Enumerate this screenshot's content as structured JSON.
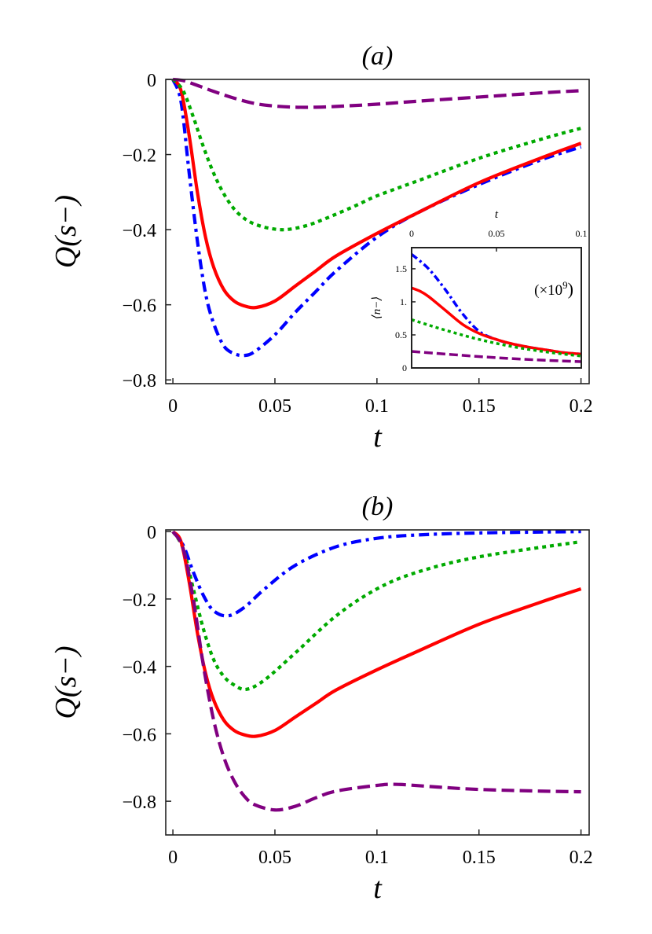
{
  "chart_data": [
    {
      "type": "line",
      "title": "(a)",
      "xlabel": "t",
      "ylabel": "Q(s−)",
      "xlim": [
        -0.0035,
        0.204
      ],
      "ylim": [
        -0.81,
        0
      ],
      "xticks": [
        0,
        0.05,
        0.1,
        0.15,
        0.2
      ],
      "xtick_labels": [
        "0",
        "0.05",
        "0.1",
        "0.15",
        "0.2"
      ],
      "yticks": [
        0,
        -0.2,
        -0.4,
        -0.6,
        -0.8
      ],
      "ytick_labels": [
        "0",
        "−0.2",
        "−0.4",
        "−0.6",
        "−0.8"
      ],
      "grid": false,
      "series": [
        {
          "color": "#0000ff",
          "style": "dashdot",
          "x": [
            0,
            0.004,
            0.008,
            0.012,
            0.016,
            0.02,
            0.025,
            0.03,
            0.035,
            0.04,
            0.05,
            0.06,
            0.07,
            0.08,
            0.1,
            0.12,
            0.15,
            0.18,
            0.2
          ],
          "y": [
            0,
            -0.06,
            -0.25,
            -0.43,
            -0.57,
            -0.65,
            -0.71,
            -0.73,
            -0.735,
            -0.725,
            -0.68,
            -0.62,
            -0.565,
            -0.51,
            -0.42,
            -0.355,
            -0.28,
            -0.215,
            -0.18
          ]
        },
        {
          "color": "#ff0000",
          "style": "solid",
          "x": [
            0,
            0.004,
            0.008,
            0.012,
            0.016,
            0.02,
            0.025,
            0.03,
            0.035,
            0.041,
            0.05,
            0.06,
            0.07,
            0.08,
            0.1,
            0.12,
            0.15,
            0.18,
            0.2
          ],
          "y": [
            0,
            -0.03,
            -0.15,
            -0.3,
            -0.42,
            -0.5,
            -0.56,
            -0.59,
            -0.603,
            -0.607,
            -0.59,
            -0.55,
            -0.51,
            -0.47,
            -0.41,
            -0.355,
            -0.275,
            -0.21,
            -0.17
          ]
        },
        {
          "color": "#00aa00",
          "style": "dotted",
          "x": [
            0,
            0.005,
            0.01,
            0.015,
            0.02,
            0.025,
            0.03,
            0.035,
            0.04,
            0.047,
            0.055,
            0.065,
            0.075,
            0.09,
            0.1,
            0.12,
            0.15,
            0.18,
            0.2
          ],
          "y": [
            0,
            -0.03,
            -0.1,
            -0.18,
            -0.25,
            -0.305,
            -0.345,
            -0.37,
            -0.385,
            -0.396,
            -0.4,
            -0.39,
            -0.37,
            -0.335,
            -0.31,
            -0.27,
            -0.21,
            -0.16,
            -0.13
          ]
        },
        {
          "color": "#800080",
          "style": "dashed",
          "x": [
            0,
            0.005,
            0.01,
            0.02,
            0.03,
            0.04,
            0.05,
            0.06,
            0.07,
            0.08,
            0.1,
            0.12,
            0.15,
            0.18,
            0.2
          ],
          "y": [
            0,
            -0.003,
            -0.012,
            -0.032,
            -0.05,
            -0.064,
            -0.071,
            -0.074,
            -0.074,
            -0.072,
            -0.066,
            -0.058,
            -0.047,
            -0.036,
            -0.03
          ]
        }
      ]
    },
    {
      "type": "line",
      "title": "",
      "xlabel": "t",
      "ylabel": "⟨n−⟩",
      "annotation": "(×10⁹)",
      "annotation_base": "(×10",
      "annotation_exp": "9",
      "annotation_close": ")",
      "xlim": [
        0,
        0.1
      ],
      "ylim": [
        0,
        1.82
      ],
      "xticks": [
        0,
        0.05,
        0.1
      ],
      "xtick_labels": [
        "0",
        "0.05",
        "0.1"
      ],
      "xaxis_position": "top",
      "yticks": [
        0,
        0.5,
        1,
        1.5
      ],
      "ytick_labels": [
        "0",
        "0.5",
        "1.",
        "1.5"
      ],
      "placement": "inset in (a), bottom-right",
      "series": [
        {
          "color": "#0000ff",
          "style": "dashdot",
          "x": [
            0,
            0.01,
            0.02,
            0.03,
            0.04,
            0.05,
            0.06,
            0.07,
            0.08,
            0.09,
            0.1
          ],
          "y": [
            1.72,
            1.5,
            1.18,
            0.82,
            0.55,
            0.43,
            0.36,
            0.31,
            0.27,
            0.23,
            0.21
          ]
        },
        {
          "color": "#ff0000",
          "style": "solid",
          "x": [
            0,
            0.005,
            0.01,
            0.02,
            0.03,
            0.04,
            0.05,
            0.06,
            0.07,
            0.08,
            0.09,
            0.1
          ],
          "y": [
            1.21,
            1.16,
            1.08,
            0.87,
            0.66,
            0.52,
            0.43,
            0.36,
            0.31,
            0.27,
            0.23,
            0.21
          ]
        },
        {
          "color": "#00aa00",
          "style": "dotted",
          "x": [
            0,
            0.02,
            0.04,
            0.06,
            0.08,
            0.1
          ],
          "y": [
            0.73,
            0.57,
            0.43,
            0.32,
            0.24,
            0.18
          ]
        },
        {
          "color": "#800080",
          "style": "dashed",
          "x": [
            0,
            0.025,
            0.05,
            0.075,
            0.1
          ],
          "y": [
            0.25,
            0.2,
            0.155,
            0.12,
            0.095
          ]
        }
      ]
    },
    {
      "type": "line",
      "title": "(b)",
      "xlabel": "t",
      "ylabel": "Q(s−)",
      "xlim": [
        -0.0035,
        0.204
      ],
      "ylim": [
        -0.9,
        0.005
      ],
      "xticks": [
        0,
        0.05,
        0.1,
        0.15,
        0.2
      ],
      "xtick_labels": [
        "0",
        "0.05",
        "0.1",
        "0.15",
        "0.2"
      ],
      "yticks": [
        0,
        -0.2,
        -0.4,
        -0.6,
        -0.8
      ],
      "ytick_labels": [
        "0",
        "−0.2",
        "−0.4",
        "−0.6",
        "−0.8"
      ],
      "grid": false,
      "series": [
        {
          "color": "#0000ff",
          "style": "dashdot",
          "x": [
            0,
            0.005,
            0.01,
            0.015,
            0.02,
            0.027,
            0.035,
            0.045,
            0.06,
            0.08,
            0.1,
            0.12,
            0.15,
            0.2
          ],
          "y": [
            0,
            -0.04,
            -0.12,
            -0.19,
            -0.235,
            -0.25,
            -0.225,
            -0.17,
            -0.1,
            -0.045,
            -0.02,
            -0.01,
            -0.004,
            0
          ]
        },
        {
          "color": "#00aa00",
          "style": "dotted",
          "x": [
            0,
            0.005,
            0.01,
            0.015,
            0.02,
            0.025,
            0.03,
            0.036,
            0.045,
            0.06,
            0.08,
            0.1,
            0.12,
            0.15,
            0.2
          ],
          "y": [
            0,
            -0.05,
            -0.17,
            -0.29,
            -0.38,
            -0.43,
            -0.455,
            -0.468,
            -0.44,
            -0.36,
            -0.25,
            -0.17,
            -0.12,
            -0.075,
            -0.03
          ]
        },
        {
          "color": "#ff0000",
          "style": "solid",
          "x": [
            0,
            0.004,
            0.008,
            0.012,
            0.016,
            0.02,
            0.025,
            0.03,
            0.035,
            0.041,
            0.05,
            0.06,
            0.07,
            0.08,
            0.1,
            0.12,
            0.15,
            0.18,
            0.2
          ],
          "y": [
            0,
            -0.03,
            -0.15,
            -0.3,
            -0.42,
            -0.5,
            -0.56,
            -0.59,
            -0.603,
            -0.607,
            -0.59,
            -0.55,
            -0.51,
            -0.47,
            -0.41,
            -0.355,
            -0.275,
            -0.21,
            -0.17
          ]
        },
        {
          "color": "#800080",
          "style": "dashed",
          "x": [
            0,
            0.005,
            0.01,
            0.015,
            0.02,
            0.025,
            0.03,
            0.035,
            0.04,
            0.05,
            0.06,
            0.07,
            0.08,
            0.1,
            0.11,
            0.13,
            0.15,
            0.18,
            0.2
          ],
          "y": [
            0,
            -0.05,
            -0.2,
            -0.4,
            -0.56,
            -0.67,
            -0.74,
            -0.785,
            -0.81,
            -0.826,
            -0.815,
            -0.79,
            -0.77,
            -0.753,
            -0.75,
            -0.758,
            -0.765,
            -0.77,
            -0.772
          ]
        }
      ]
    }
  ]
}
